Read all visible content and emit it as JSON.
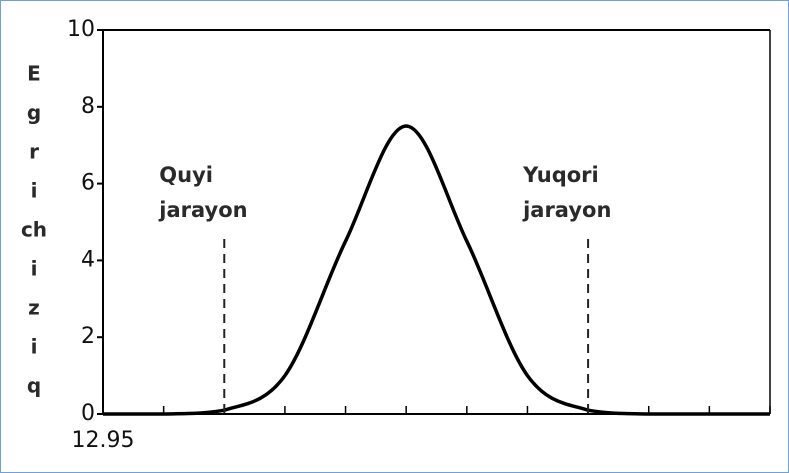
{
  "chart_data": {
    "type": "line",
    "y_label_lines": [
      "E",
      "g",
      "r",
      "i",
      "ch",
      "i",
      "z",
      "i",
      "q"
    ],
    "categories": [
      "12.95",
      null,
      null,
      null,
      null,
      null,
      null,
      null,
      null,
      null,
      null,
      null
    ],
    "series": [
      {
        "color": "#000000",
        "values": [
          0,
          0,
          0.1,
          1.0,
          4.5,
          7.5,
          4.5,
          1.0,
          0.1,
          0,
          0,
          0
        ]
      }
    ],
    "ylim": [
      0,
      10
    ],
    "yticks": [
      0,
      2,
      4,
      6,
      8,
      10
    ],
    "annotations": [
      {
        "lines": [
          "Quyi",
          "jarayon"
        ],
        "x": 2
      },
      {
        "lines": [
          "Yuqori",
          "jarayon"
        ],
        "x": 8
      }
    ]
  }
}
